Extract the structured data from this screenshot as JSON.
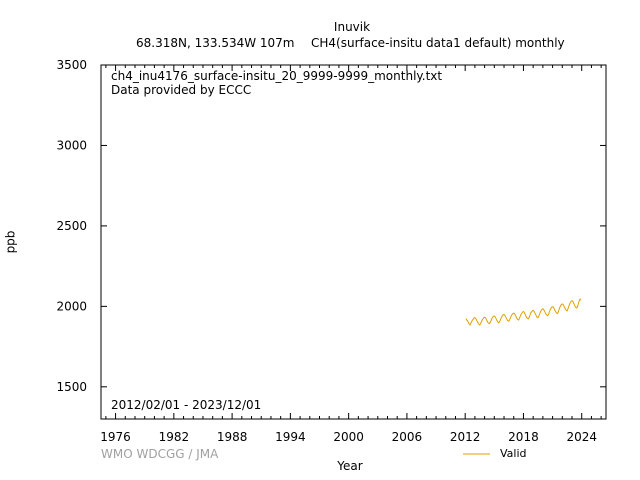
{
  "header": {
    "station": "Inuvik",
    "location": "68.318N, 133.534W 107m",
    "parameter": "CH4(surface-insitu data1 default) monthly"
  },
  "plot_notes": {
    "filename": "ch4_inu4176_surface-insitu_20_9999-9999_monthly.txt",
    "provider": "Data provided by ECCC",
    "date_range": "2012/02/01 - 2023/12/01"
  },
  "credit": "WMO WDCGG / JMA",
  "colors": {
    "series": "#e0a000",
    "axis": "#000000",
    "credit": "#a0a0a0"
  },
  "chart_data": {
    "type": "line",
    "title": "",
    "xlabel": "Year",
    "ylabel": "ppb",
    "xlim": [
      1974.5,
      2026.5
    ],
    "ylim": [
      1300,
      3500
    ],
    "x_ticks": [
      1976,
      1982,
      1988,
      1994,
      2000,
      2006,
      2012,
      2018,
      2024
    ],
    "y_ticks": [
      1500,
      2000,
      2500,
      3000,
      3500
    ],
    "grid": false,
    "legend": {
      "position": "bottom-right",
      "entries": [
        "Valid"
      ]
    },
    "series": [
      {
        "name": "Valid",
        "x": [
          2012.083,
          2012.167,
          2012.25,
          2012.333,
          2012.417,
          2012.5,
          2012.583,
          2012.667,
          2012.75,
          2012.833,
          2012.917,
          2013.0,
          2013.083,
          2013.167,
          2013.25,
          2013.333,
          2013.417,
          2013.5,
          2013.583,
          2013.667,
          2013.75,
          2013.833,
          2013.917,
          2014.0,
          2014.083,
          2014.167,
          2014.25,
          2014.333,
          2014.417,
          2014.5,
          2014.583,
          2014.667,
          2014.75,
          2014.833,
          2014.917,
          2015.0,
          2015.083,
          2015.167,
          2015.25,
          2015.333,
          2015.417,
          2015.5,
          2015.583,
          2015.667,
          2015.75,
          2015.833,
          2015.917,
          2016.0,
          2016.083,
          2016.167,
          2016.25,
          2016.333,
          2016.417,
          2016.5,
          2016.583,
          2016.667,
          2016.75,
          2016.833,
          2016.917,
          2017.0,
          2017.083,
          2017.167,
          2017.25,
          2017.333,
          2017.417,
          2017.5,
          2017.583,
          2017.667,
          2017.75,
          2017.833,
          2017.917,
          2018.0,
          2018.083,
          2018.167,
          2018.25,
          2018.333,
          2018.417,
          2018.5,
          2018.583,
          2018.667,
          2018.75,
          2018.833,
          2018.917,
          2019.0,
          2019.083,
          2019.167,
          2019.25,
          2019.333,
          2019.417,
          2019.5,
          2019.583,
          2019.667,
          2019.75,
          2019.833,
          2019.917,
          2020.0,
          2020.083,
          2020.167,
          2020.25,
          2020.333,
          2020.417,
          2020.5,
          2020.583,
          2020.667,
          2020.75,
          2020.833,
          2020.917,
          2021.0,
          2021.083,
          2021.167,
          2021.25,
          2021.333,
          2021.417,
          2021.5,
          2021.583,
          2021.667,
          2021.75,
          2021.833,
          2021.917,
          2022.0,
          2022.083,
          2022.167,
          2022.25,
          2022.333,
          2022.417,
          2022.5,
          2022.583,
          2022.667,
          2022.75,
          2022.833,
          2022.917,
          2023.0,
          2023.083,
          2023.167,
          2023.25,
          2023.333,
          2023.417,
          2023.5,
          2023.583,
          2023.667,
          2023.75,
          2023.833,
          2023.917
        ],
        "y": [
          1925,
          1915,
          1910,
          1900,
          1890,
          1885,
          1895,
          1905,
          1915,
          1920,
          1928,
          1930,
          1925,
          1915,
          1905,
          1895,
          1888,
          1885,
          1892,
          1905,
          1915,
          1922,
          1930,
          1932,
          1930,
          1920,
          1910,
          1900,
          1895,
          1893,
          1900,
          1912,
          1925,
          1932,
          1938,
          1940,
          1935,
          1925,
          1915,
          1905,
          1898,
          1900,
          1910,
          1922,
          1935,
          1942,
          1948,
          1950,
          1945,
          1935,
          1925,
          1915,
          1910,
          1908,
          1918,
          1930,
          1942,
          1950,
          1955,
          1958,
          1955,
          1945,
          1935,
          1925,
          1918,
          1915,
          1925,
          1938,
          1950,
          1958,
          1965,
          1968,
          1962,
          1952,
          1940,
          1930,
          1925,
          1922,
          1930,
          1945,
          1958,
          1966,
          1972,
          1975,
          1970,
          1960,
          1950,
          1940,
          1932,
          1930,
          1940,
          1952,
          1965,
          1975,
          1982,
          1985,
          1980,
          1970,
          1960,
          1950,
          1945,
          1942,
          1952,
          1965,
          1978,
          1988,
          1995,
          1998,
          1995,
          1985,
          1975,
          1965,
          1958,
          1955,
          1965,
          1980,
          1995,
          2005,
          2012,
          2015,
          2012,
          2002,
          1992,
          1982,
          1975,
          1972,
          1985,
          2000,
          2015,
          2025,
          2032,
          2035,
          2032,
          2020,
          2008,
          1998,
          1992,
          1990,
          2002,
          2020,
          2035,
          2045,
          2038
        ]
      }
    ]
  }
}
